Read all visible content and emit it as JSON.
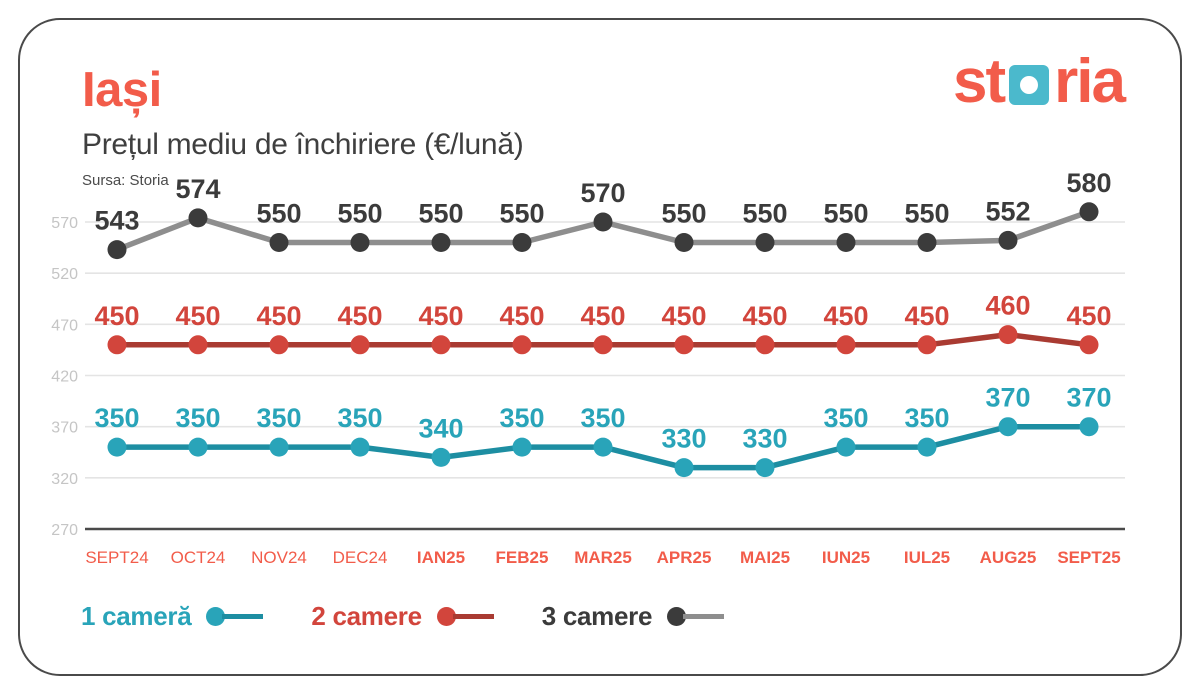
{
  "header": {
    "title": "Iași",
    "subtitle": "Prețul mediu de închiriere (€/lună)",
    "source": "Sursa: Storia",
    "logo": {
      "part1": "st",
      "part2": "ria"
    }
  },
  "colors": {
    "brand_coral": "#F25C4A",
    "logo_square_teal": "#4BB9CC",
    "subtitle_gray": "#3F3F3F",
    "grid": "#E4E4E4",
    "axis_line": "#4A4A4A",
    "y_tick_label": "#C5C5C5",
    "x_tick_label": "#F25C4A"
  },
  "chart_data": {
    "type": "line",
    "title": "Prețul mediu de închiriere (€/lună)",
    "xlabel": "",
    "ylabel": "",
    "categories": [
      "SEPT24",
      "OCT24",
      "NOV24",
      "DEC24",
      "IAN25",
      "FEB25",
      "MAR25",
      "APR25",
      "MAI25",
      "IUN25",
      "IUL25",
      "AUG25",
      "SEPT25"
    ],
    "x_bold_from_index": 4,
    "series": [
      {
        "name": "1 cameră",
        "values": [
          350,
          350,
          350,
          350,
          340,
          350,
          350,
          330,
          330,
          350,
          350,
          370,
          370
        ],
        "dot_color": "#29A4B9",
        "line_color": "#1D8EA2"
      },
      {
        "name": "2 camere",
        "values": [
          450,
          450,
          450,
          450,
          450,
          450,
          450,
          450,
          450,
          450,
          450,
          460,
          450
        ],
        "dot_color": "#D2453C",
        "line_color": "#A93B32"
      },
      {
        "name": "3 camere",
        "values": [
          543,
          574,
          550,
          550,
          550,
          550,
          570,
          550,
          550,
          550,
          550,
          552,
          580
        ],
        "dot_color": "#3B3B3B",
        "line_color": "#8E8E8E"
      }
    ],
    "y_ticks": [
      570,
      520,
      470,
      420,
      370,
      320,
      270
    ],
    "ylim": [
      270,
      600
    ],
    "grid": true,
    "legend_position": "bottom",
    "data_labels": true
  }
}
